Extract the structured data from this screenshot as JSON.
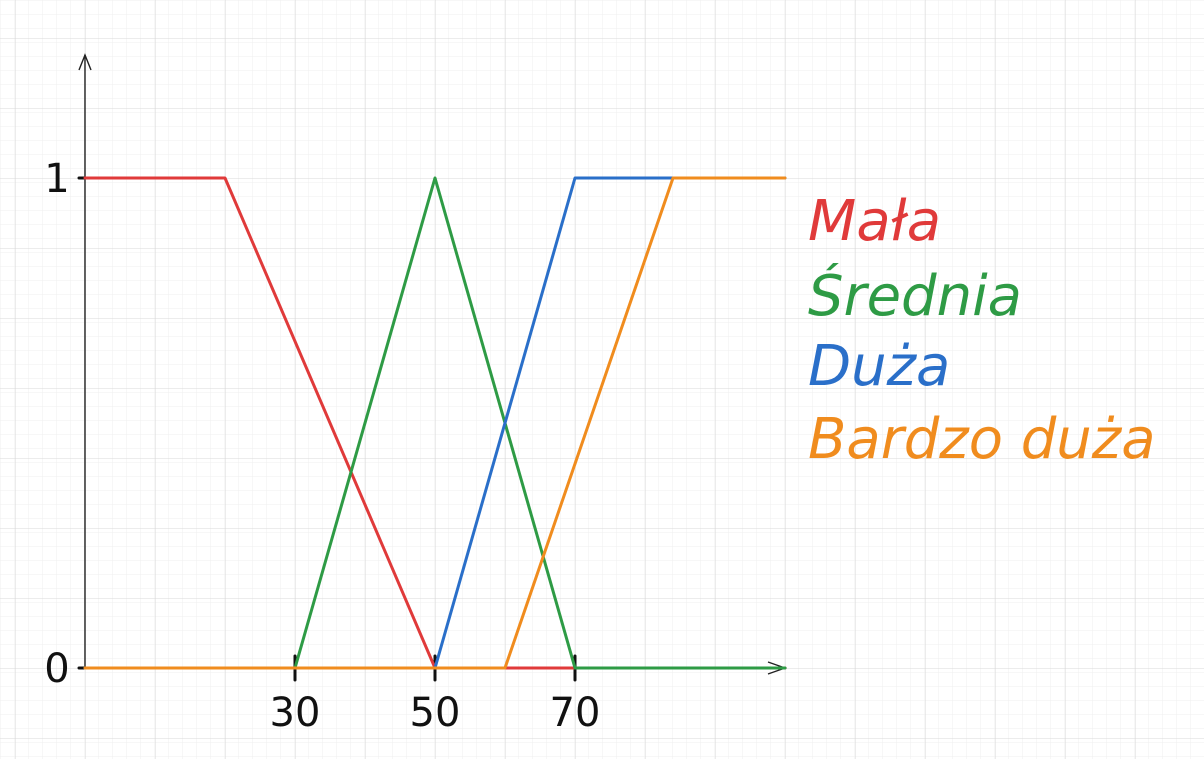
{
  "chart_data": {
    "type": "line",
    "title": "",
    "xlabel": "",
    "ylabel": "",
    "xlim": [
      0,
      100
    ],
    "ylim": [
      0,
      1
    ],
    "grid": true,
    "legend_placement": "right",
    "x_ticks": [
      {
        "value": 30,
        "label": "30"
      },
      {
        "value": 50,
        "label": "50"
      },
      {
        "value": 70,
        "label": "70"
      }
    ],
    "y_ticks": [
      {
        "value": 0,
        "label": "0"
      },
      {
        "value": 1,
        "label": "1"
      }
    ],
    "series": [
      {
        "name": "Mała",
        "color": "#e03a3a",
        "points": [
          [
            0,
            1
          ],
          [
            20,
            1
          ],
          [
            50,
            0
          ],
          [
            100,
            0
          ]
        ]
      },
      {
        "name": "Średnia",
        "color": "#2e9b45",
        "points": [
          [
            0,
            0
          ],
          [
            30,
            0
          ],
          [
            50,
            1
          ],
          [
            70,
            0
          ],
          [
            100,
            0
          ]
        ]
      },
      {
        "name": "Duża",
        "color": "#2a6fc9",
        "points": [
          [
            0,
            0
          ],
          [
            50,
            0
          ],
          [
            70,
            1
          ],
          [
            100,
            1
          ]
        ]
      },
      {
        "name": "Bardzo duża",
        "color": "#f08c1e",
        "points": [
          [
            0,
            0
          ],
          [
            60,
            0
          ],
          [
            84,
            1
          ],
          [
            100,
            1
          ]
        ]
      }
    ]
  }
}
